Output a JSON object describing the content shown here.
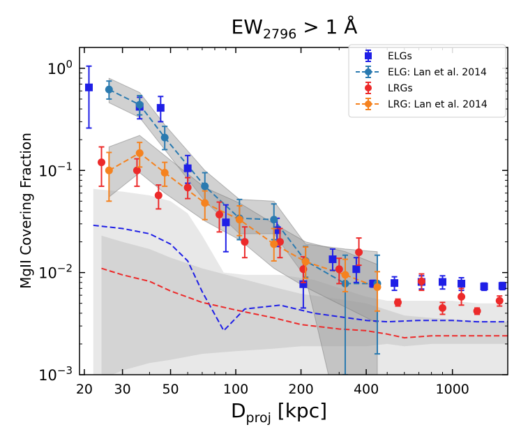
{
  "chart_data": {
    "type": "scatter",
    "title": "EW",
    "title_sub": "2796",
    "title_rest": " > 1 Å",
    "xlabel": "D",
    "xlabel_sub": "proj",
    "xlabel_rest": " [kpc]",
    "ylabel": "MgII Covering Fraction",
    "xscale": "log",
    "yscale": "log",
    "xlim": [
      19,
      1800
    ],
    "ylim": [
      0.001,
      1.6
    ],
    "xticks": [
      {
        "value": 20,
        "label": "20"
      },
      {
        "value": 30,
        "label": "30"
      },
      {
        "value": 50,
        "label": "50"
      },
      {
        "value": 100,
        "label": "100"
      },
      {
        "value": 200,
        "label": "200"
      },
      {
        "value": 400,
        "label": "400"
      },
      {
        "value": 1000,
        "label": "1000"
      }
    ],
    "yticks": [
      {
        "value": 1,
        "base": "10",
        "exp": "0"
      },
      {
        "value": 0.1,
        "base": "10",
        "exp": "−1"
      },
      {
        "value": 0.01,
        "base": "10",
        "exp": "−2"
      },
      {
        "value": 0.001,
        "base": "10",
        "exp": "−3"
      }
    ],
    "legend_position": "top-right",
    "colors": {
      "elg": "#1f1fe6",
      "elg_lan": "#2a7ab0",
      "lrg": "#ec2a2a",
      "lrg_lan": "#f5821f",
      "band_dark": "#9a9a9a",
      "band_light": "#d8d8d8"
    },
    "series": [
      {
        "name": "ELGs",
        "marker": "square",
        "color_key": "elg",
        "x": [
          21,
          36,
          45,
          60,
          90,
          155,
          205,
          280,
          360,
          430,
          540,
          720,
          900,
          1100,
          1400,
          1700
        ],
        "y": [
          0.65,
          0.42,
          0.41,
          0.105,
          0.031,
          0.026,
          0.0077,
          0.0135,
          0.0108,
          0.0078,
          0.0079,
          0.0081,
          0.0081,
          0.0078,
          0.0073,
          0.0074
        ],
        "err_low": [
          0.39,
          0.1,
          0.11,
          0.03,
          0.015,
          0.008,
          0.0032,
          0.003,
          0.0028,
          0.0006,
          0.0012,
          0.0012,
          0.0012,
          0.0011,
          0.0006,
          0.0006
        ],
        "err_high": [
          0.4,
          0.1,
          0.12,
          0.035,
          0.015,
          0.008,
          0.0035,
          0.0035,
          0.0032,
          0.0006,
          0.0012,
          0.0012,
          0.0012,
          0.0011,
          0.0006,
          0.0006
        ]
      },
      {
        "name": "ELG: Lan et al. 2014",
        "marker": "circle",
        "color_key": "elg_lan",
        "dashed": true,
        "x": [
          26,
          36,
          47,
          72,
          104,
          150,
          210,
          320,
          450
        ],
        "y": [
          0.62,
          0.44,
          0.21,
          0.07,
          0.034,
          0.033,
          0.013,
          0.0078,
          0.0078
        ],
        "err_low": [
          0.12,
          0.09,
          0.05,
          0.022,
          0.013,
          0.012,
          0.004,
          0.0068,
          0.0062
        ],
        "err_high": [
          0.13,
          0.1,
          0.06,
          0.025,
          0.018,
          0.014,
          0.005,
          0.007,
          0.007
        ],
        "band_low": [
          0.46,
          0.33,
          0.16,
          0.05,
          0.024,
          0.024,
          0.009,
          0.0002,
          0.0005
        ],
        "band_high": [
          0.8,
          0.58,
          0.28,
          0.1,
          0.052,
          0.05,
          0.019,
          0.017,
          0.016
        ]
      },
      {
        "name": "LRGs",
        "marker": "circle",
        "color_key": "lrg",
        "x": [
          24,
          35,
          44,
          60,
          84,
          110,
          160,
          205,
          300,
          370,
          560,
          720,
          900,
          1100,
          1300,
          1650
        ],
        "y": [
          0.12,
          0.1,
          0.057,
          0.068,
          0.037,
          0.02,
          0.02,
          0.0108,
          0.0108,
          0.0158,
          0.0051,
          0.0082,
          0.0045,
          0.0058,
          0.0042,
          0.0053
        ],
        "err_low": [
          0.05,
          0.03,
          0.015,
          0.015,
          0.012,
          0.006,
          0.006,
          0.0028,
          0.003,
          0.004,
          0.0004,
          0.0015,
          0.0006,
          0.001,
          0.0003,
          0.0006
        ],
        "err_high": [
          0.05,
          0.03,
          0.015,
          0.017,
          0.012,
          0.008,
          0.007,
          0.0035,
          0.003,
          0.006,
          0.0004,
          0.0015,
          0.0006,
          0.0012,
          0.0003,
          0.0006
        ]
      },
      {
        "name": "LRG: Lan et al. 2014",
        "marker": "circle",
        "color_key": "lrg_lan",
        "dashed": true,
        "x": [
          26,
          36,
          47,
          72,
          104,
          150,
          210,
          320,
          450
        ],
        "y": [
          0.1,
          0.148,
          0.095,
          0.048,
          0.033,
          0.019,
          0.0128,
          0.0095,
          0.0072
        ],
        "err_low": [
          0.05,
          0.04,
          0.025,
          0.015,
          0.01,
          0.006,
          0.004,
          0.003,
          0.003
        ],
        "err_high": [
          0.05,
          0.04,
          0.025,
          0.015,
          0.012,
          0.008,
          0.005,
          0.004,
          0.003
        ],
        "band_low": [
          0.055,
          0.095,
          0.06,
          0.032,
          0.021,
          0.011,
          0.0072,
          0.0046,
          0.0032
        ],
        "band_high": [
          0.17,
          0.22,
          0.14,
          0.068,
          0.048,
          0.03,
          0.02,
          0.016,
          0.012
        ]
      }
    ],
    "model_lines": [
      {
        "name": "ELG model",
        "color_key": "elg",
        "dashed": true,
        "x": [
          22,
          30,
          40,
          50,
          60,
          70,
          88,
          110,
          160,
          230,
          400,
          500,
          700,
          1000,
          1300,
          1800
        ],
        "y": [
          0.029,
          0.027,
          0.024,
          0.019,
          0.013,
          0.0065,
          0.0027,
          0.0044,
          0.0048,
          0.004,
          0.0034,
          0.0033,
          0.0034,
          0.0034,
          0.0033,
          0.0033
        ],
        "band_low": [
          0.0009,
          0.0009,
          0.0009,
          0.0009,
          0.0009,
          0.0009,
          0.0009,
          0.0009,
          0.0009,
          0.0009,
          0.0009,
          0.0009,
          0.0009,
          0.0009,
          0.0009,
          0.0009
        ],
        "band_high": [
          0.066,
          0.062,
          0.057,
          0.05,
          0.038,
          0.023,
          0.01,
          0.0095,
          0.0095,
          0.0085,
          0.0058,
          0.0053,
          0.0053,
          0.0053,
          0.005,
          0.005
        ]
      },
      {
        "name": "LRG model",
        "color_key": "lrg",
        "dashed": true,
        "x": [
          24,
          30,
          40,
          50,
          70,
          100,
          150,
          200,
          300,
          400,
          500,
          600,
          800,
          1200,
          1800
        ],
        "y": [
          0.011,
          0.0095,
          0.0082,
          0.0066,
          0.0051,
          0.0043,
          0.0036,
          0.0031,
          0.0028,
          0.0027,
          0.0025,
          0.0023,
          0.0024,
          0.0024,
          0.0024
        ],
        "band_low": [
          0.0009,
          0.0011,
          0.0013,
          0.0014,
          0.0016,
          0.0017,
          0.0018,
          0.0019,
          0.0019,
          0.0019,
          0.002,
          0.0019,
          0.002,
          0.002,
          0.002
        ],
        "band_high": [
          0.023,
          0.02,
          0.017,
          0.014,
          0.011,
          0.009,
          0.0072,
          0.0062,
          0.0055,
          0.005,
          0.0043,
          0.0038,
          0.0036,
          0.0034,
          0.0033
        ]
      }
    ]
  }
}
